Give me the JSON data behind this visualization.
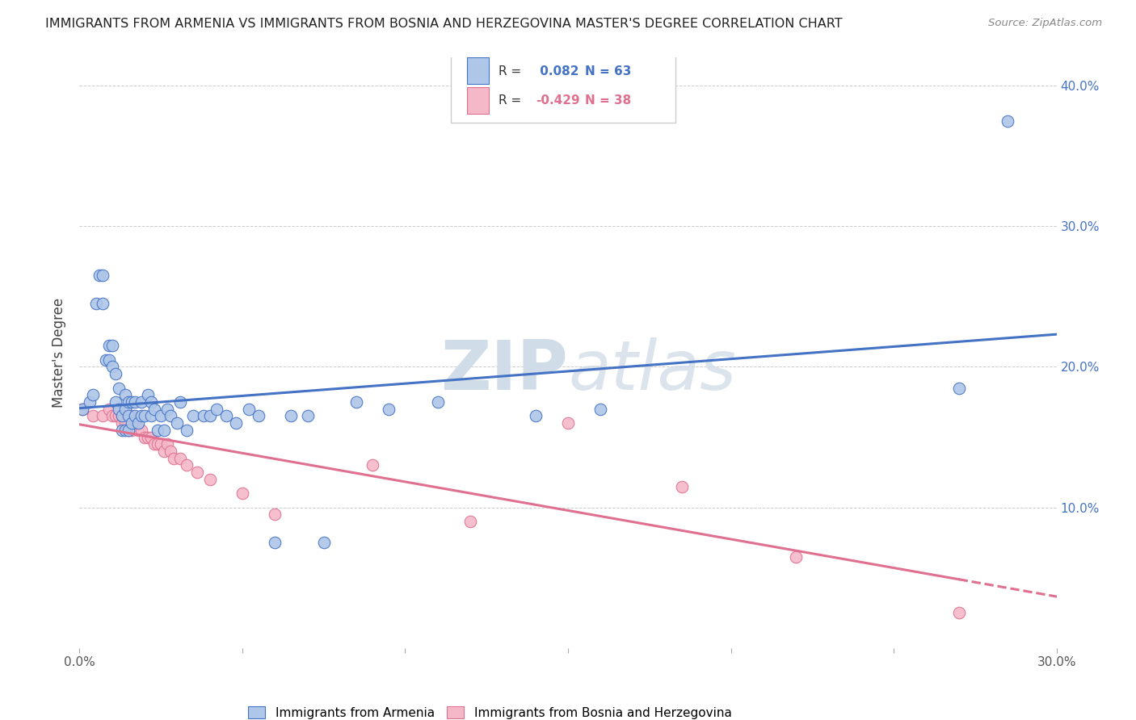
{
  "title": "IMMIGRANTS FROM ARMENIA VS IMMIGRANTS FROM BOSNIA AND HERZEGOVINA MASTER'S DEGREE CORRELATION CHART",
  "source": "Source: ZipAtlas.com",
  "ylabel": "Master's Degree",
  "xlim": [
    0.0,
    0.3
  ],
  "ylim": [
    0.0,
    0.42
  ],
  "legend_labels": [
    "Immigrants from Armenia",
    "Immigrants from Bosnia and Herzegovina"
  ],
  "R_armenia": 0.082,
  "N_armenia": 63,
  "R_bosnia": -0.429,
  "N_bosnia": 38,
  "scatter_armenia_x": [
    0.001,
    0.003,
    0.004,
    0.005,
    0.006,
    0.007,
    0.007,
    0.008,
    0.009,
    0.009,
    0.01,
    0.01,
    0.011,
    0.011,
    0.012,
    0.012,
    0.013,
    0.013,
    0.014,
    0.014,
    0.014,
    0.015,
    0.015,
    0.015,
    0.016,
    0.016,
    0.017,
    0.017,
    0.018,
    0.019,
    0.019,
    0.02,
    0.021,
    0.022,
    0.022,
    0.023,
    0.024,
    0.025,
    0.026,
    0.027,
    0.028,
    0.03,
    0.031,
    0.033,
    0.035,
    0.038,
    0.04,
    0.042,
    0.045,
    0.048,
    0.052,
    0.055,
    0.06,
    0.065,
    0.07,
    0.075,
    0.085,
    0.095,
    0.11,
    0.14,
    0.16,
    0.27,
    0.285
  ],
  "scatter_armenia_y": [
    0.17,
    0.175,
    0.18,
    0.245,
    0.265,
    0.245,
    0.265,
    0.205,
    0.205,
    0.215,
    0.2,
    0.215,
    0.175,
    0.195,
    0.17,
    0.185,
    0.155,
    0.165,
    0.155,
    0.17,
    0.18,
    0.155,
    0.165,
    0.175,
    0.16,
    0.175,
    0.165,
    0.175,
    0.16,
    0.165,
    0.175,
    0.165,
    0.18,
    0.165,
    0.175,
    0.17,
    0.155,
    0.165,
    0.155,
    0.17,
    0.165,
    0.16,
    0.175,
    0.155,
    0.165,
    0.165,
    0.165,
    0.17,
    0.165,
    0.16,
    0.17,
    0.165,
    0.075,
    0.165,
    0.165,
    0.075,
    0.175,
    0.17,
    0.175,
    0.165,
    0.17,
    0.185,
    0.375
  ],
  "scatter_bosnia_x": [
    0.001,
    0.004,
    0.007,
    0.009,
    0.01,
    0.011,
    0.012,
    0.013,
    0.013,
    0.014,
    0.015,
    0.016,
    0.016,
    0.017,
    0.018,
    0.019,
    0.02,
    0.021,
    0.022,
    0.023,
    0.024,
    0.025,
    0.026,
    0.027,
    0.028,
    0.029,
    0.031,
    0.033,
    0.036,
    0.04,
    0.05,
    0.06,
    0.09,
    0.12,
    0.15,
    0.185,
    0.22,
    0.27
  ],
  "scatter_bosnia_y": [
    0.17,
    0.165,
    0.165,
    0.17,
    0.165,
    0.165,
    0.165,
    0.16,
    0.165,
    0.16,
    0.155,
    0.155,
    0.165,
    0.16,
    0.155,
    0.155,
    0.15,
    0.15,
    0.15,
    0.145,
    0.145,
    0.145,
    0.14,
    0.145,
    0.14,
    0.135,
    0.135,
    0.13,
    0.125,
    0.12,
    0.11,
    0.095,
    0.13,
    0.09,
    0.16,
    0.115,
    0.065,
    0.025
  ],
  "color_armenia": "#aec6e8",
  "color_armenia_border": "#4472c4",
  "color_armenia_line": "#4472c4",
  "color_bosnia": "#f4b8c8",
  "color_bosnia_border": "#e07090",
  "color_bosnia_line": "#e07090",
  "watermark_color": "#d0dce8",
  "background_color": "#ffffff",
  "grid_color": "#cccccc"
}
